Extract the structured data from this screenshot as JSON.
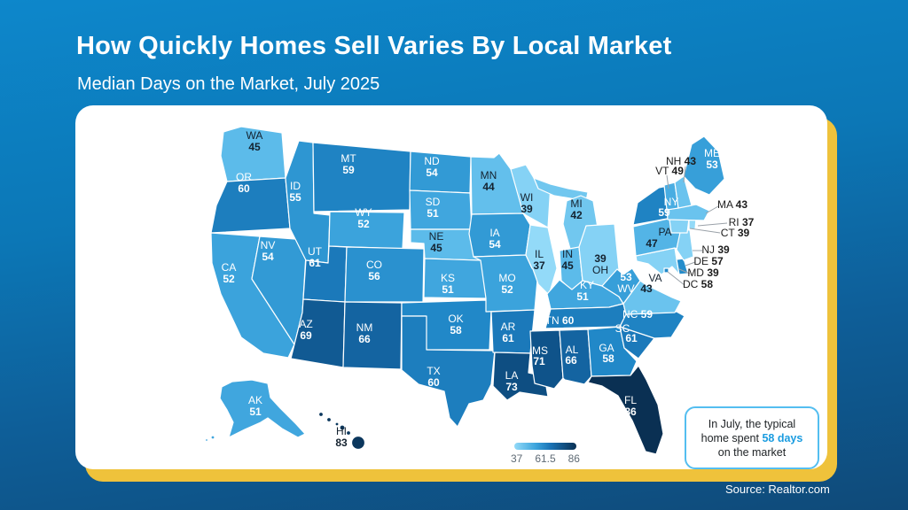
{
  "header": {
    "title": "How Quickly Homes Sell Varies By Local Market",
    "subtitle": "Median Days on the Market, July 2025"
  },
  "footer": {
    "source": "Source: Realtor.com"
  },
  "legend": {
    "ticks": [
      "37",
      "61.5",
      "86"
    ]
  },
  "callout": {
    "text_before": "In July, the typical home spent ",
    "highlight": "58 days",
    "text_after": " on the market"
  },
  "colors": {
    "background_top": "#0D87CB",
    "background_bottom": "#0F4A79",
    "card": "#FFFFFF",
    "gold_accent": "#EFC23B",
    "callout_border": "#54BEF0",
    "highlight_text": "#1A9CE0",
    "scale_min": "#93DAF8",
    "scale_max": "#0A3053"
  },
  "chart_data": {
    "type": "choropleth",
    "title": "How Quickly Homes Sell Varies By Local Market",
    "subtitle": "Median Days on the Market, July 2025",
    "metric": "Median days on the market, July 2025",
    "unit": "days",
    "domain": [
      37,
      86
    ],
    "legend_ticks": [
      37,
      61.5,
      86
    ],
    "national_typical_days": 58,
    "source": "Realtor.com",
    "states": [
      {
        "abbr": "WA",
        "value": 45
      },
      {
        "abbr": "OR",
        "value": 60
      },
      {
        "abbr": "CA",
        "value": 52
      },
      {
        "abbr": "NV",
        "value": 54
      },
      {
        "abbr": "ID",
        "value": 55
      },
      {
        "abbr": "MT",
        "value": 59
      },
      {
        "abbr": "WY",
        "value": 52
      },
      {
        "abbr": "UT",
        "value": 61
      },
      {
        "abbr": "CO",
        "value": 56
      },
      {
        "abbr": "AZ",
        "value": 69
      },
      {
        "abbr": "NM",
        "value": 66
      },
      {
        "abbr": "ND",
        "value": 54
      },
      {
        "abbr": "SD",
        "value": 51
      },
      {
        "abbr": "NE",
        "value": 45
      },
      {
        "abbr": "KS",
        "value": 51
      },
      {
        "abbr": "OK",
        "value": 58
      },
      {
        "abbr": "TX",
        "value": 60
      },
      {
        "abbr": "MN",
        "value": 44
      },
      {
        "abbr": "IA",
        "value": 54
      },
      {
        "abbr": "MO",
        "value": 52
      },
      {
        "abbr": "AR",
        "value": 61
      },
      {
        "abbr": "LA",
        "value": 73
      },
      {
        "abbr": "WI",
        "value": 39
      },
      {
        "abbr": "IL",
        "value": 37
      },
      {
        "abbr": "MI",
        "value": 42
      },
      {
        "abbr": "IN",
        "value": 45
      },
      {
        "abbr": "OH",
        "value": 39
      },
      {
        "abbr": "KY",
        "value": 51
      },
      {
        "abbr": "TN",
        "value": 60
      },
      {
        "abbr": "MS",
        "value": 71
      },
      {
        "abbr": "AL",
        "value": 66
      },
      {
        "abbr": "GA",
        "value": 58
      },
      {
        "abbr": "FL",
        "value": 86
      },
      {
        "abbr": "SC",
        "value": 61
      },
      {
        "abbr": "NC",
        "value": 59
      },
      {
        "abbr": "VA",
        "value": 43
      },
      {
        "abbr": "WV",
        "value": 53
      },
      {
        "abbr": "MD",
        "value": 39
      },
      {
        "abbr": "DE",
        "value": 57
      },
      {
        "abbr": "NJ",
        "value": 39
      },
      {
        "abbr": "PA",
        "value": 47
      },
      {
        "abbr": "NY",
        "value": 59
      },
      {
        "abbr": "CT",
        "value": 39
      },
      {
        "abbr": "RI",
        "value": 37
      },
      {
        "abbr": "MA",
        "value": 43
      },
      {
        "abbr": "VT",
        "value": 49
      },
      {
        "abbr": "NH",
        "value": 43
      },
      {
        "abbr": "ME",
        "value": 53
      },
      {
        "abbr": "DC",
        "value": 58
      },
      {
        "abbr": "AK",
        "value": 51
      },
      {
        "abbr": "HI",
        "value": 83
      }
    ]
  }
}
